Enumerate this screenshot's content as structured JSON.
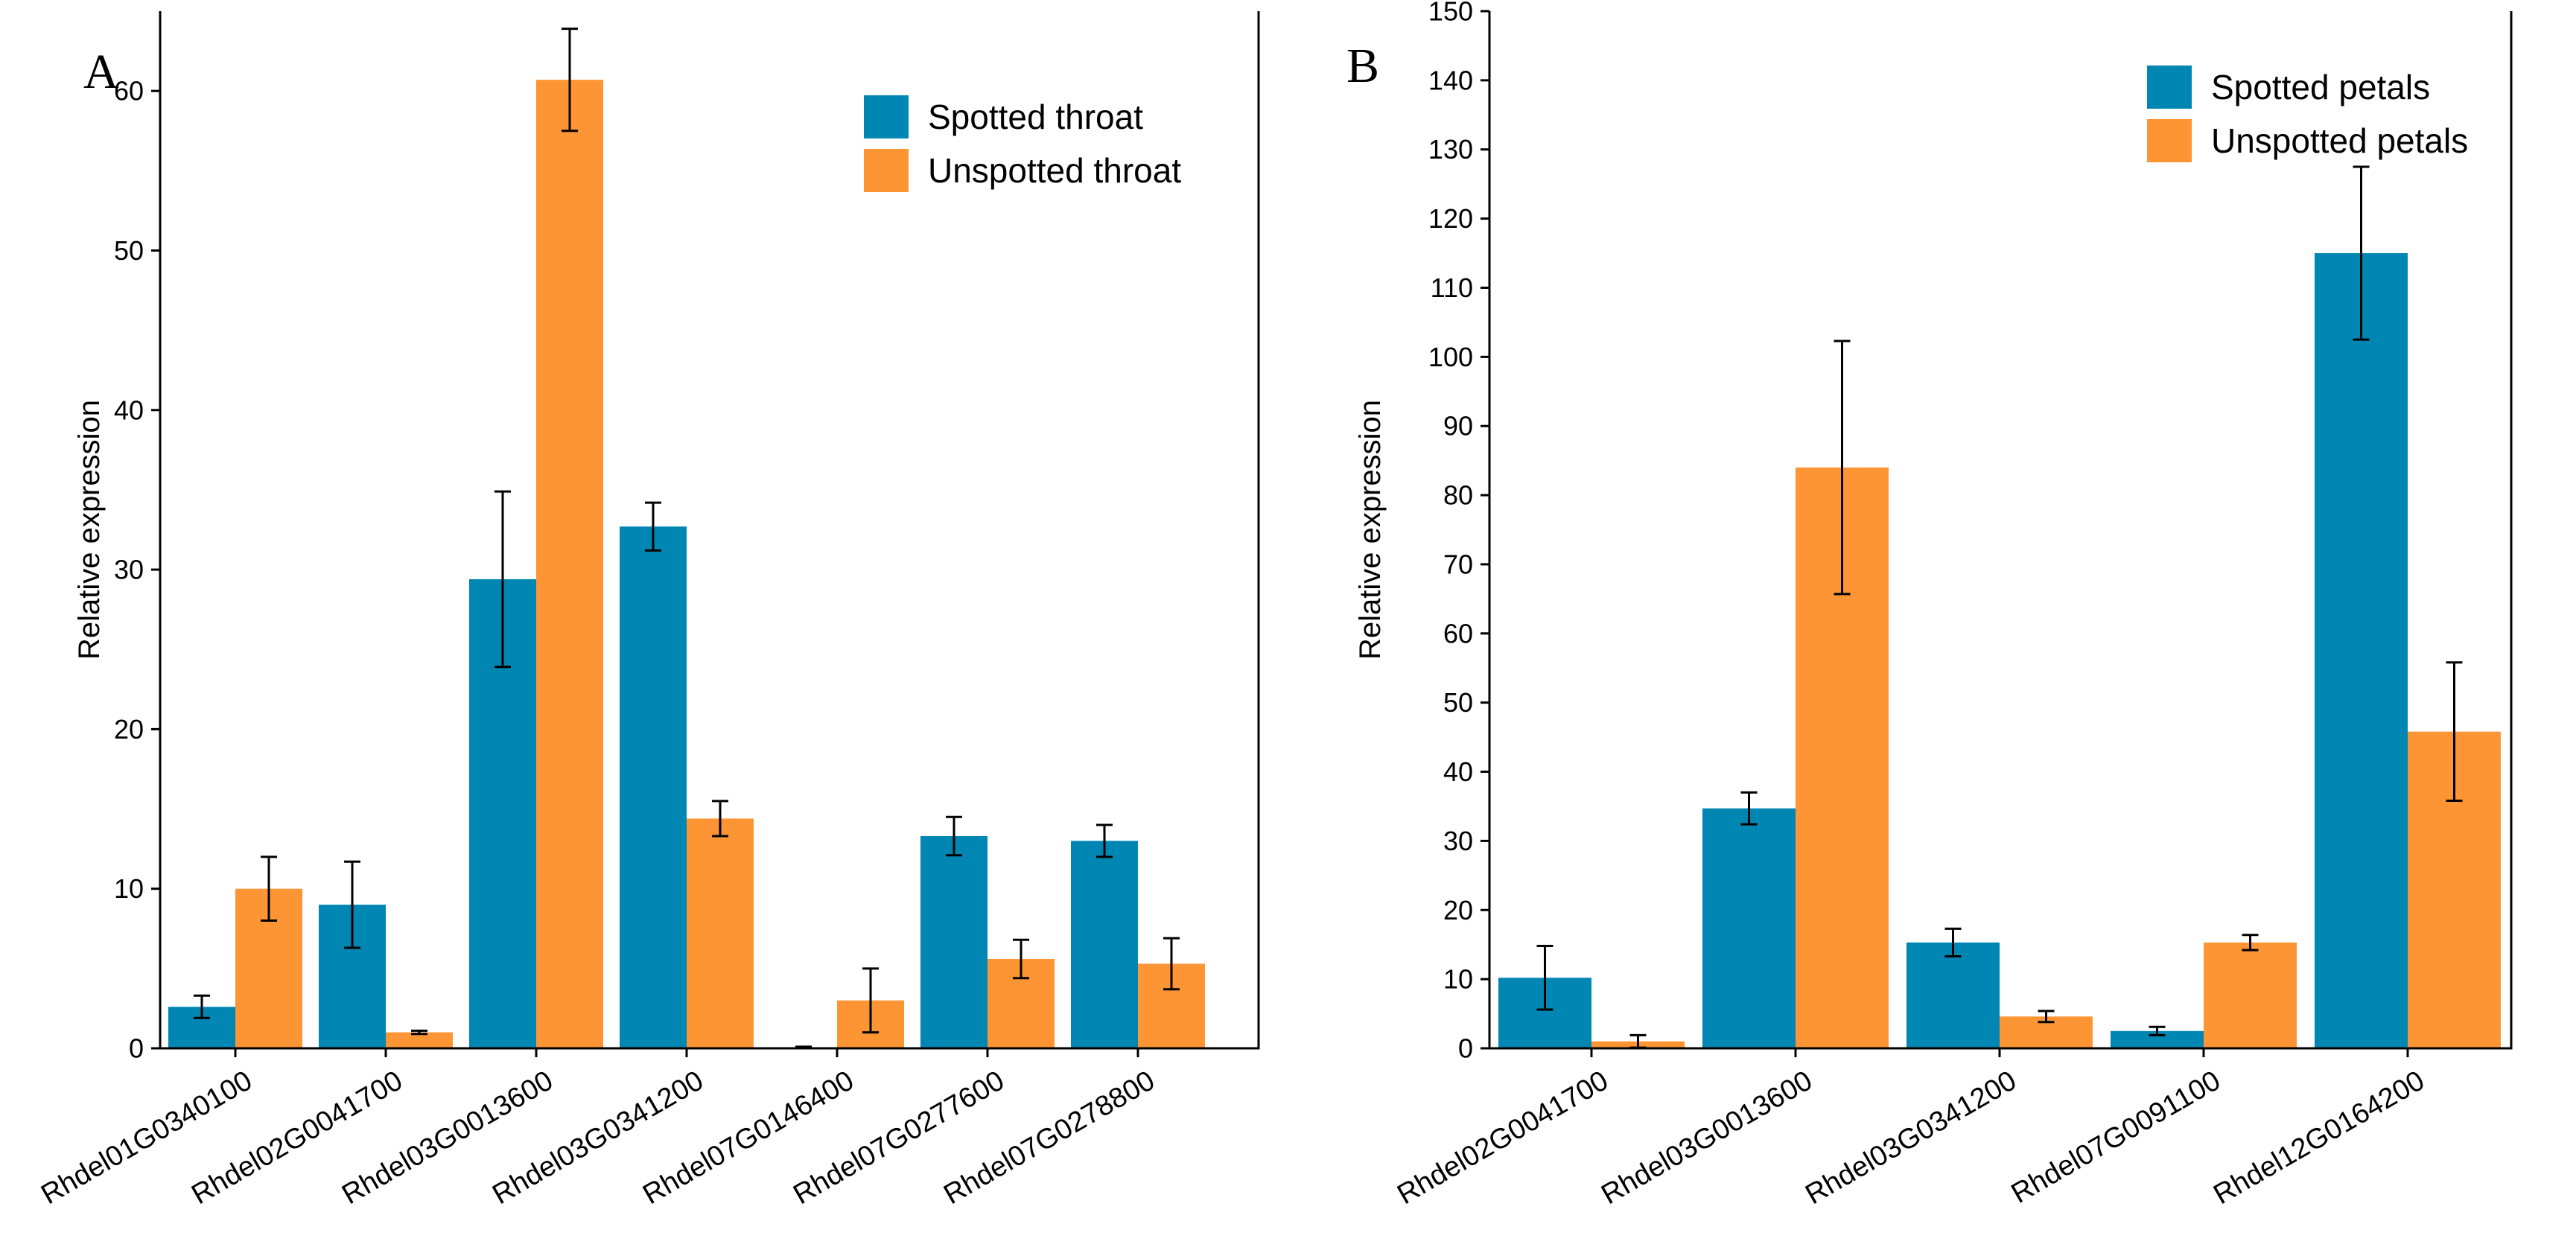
{
  "colors": {
    "spotted": "#0086b3",
    "unspotted": "#fd9534",
    "axis": "#000000",
    "errorbar": "#000000"
  },
  "chart_data": [
    {
      "type": "bar",
      "panel_label": "A",
      "title": "",
      "xlabel": "",
      "ylabel": "Relative expression",
      "ylim": [
        0,
        65
      ],
      "yticks": [
        0,
        10,
        20,
        30,
        40,
        50,
        60
      ],
      "ytick_labels": [
        "0",
        "10",
        "20",
        "30",
        "40",
        "50",
        "60"
      ],
      "categories": [
        "Rhdel01G0340100",
        "Rhdel02G0041700",
        "Rhdel03G0013600",
        "Rhdel03G0341200",
        "Rhdel07G0146400",
        "Rhdel07G0277600",
        "Rhdel07G0278800"
      ],
      "series": [
        {
          "name": "Spotted throat",
          "color_key": "spotted",
          "values": [
            2.6,
            9.0,
            29.4,
            32.7,
            0.05,
            13.3,
            13.0
          ],
          "errors": [
            0.7,
            2.7,
            5.5,
            1.5,
            0.05,
            1.2,
            1.0
          ]
        },
        {
          "name": "Unspotted throat",
          "color_key": "unspotted",
          "values": [
            10.0,
            1.0,
            60.7,
            14.4,
            3.0,
            5.6,
            5.3
          ],
          "errors": [
            2.0,
            0.1,
            3.2,
            1.1,
            2.0,
            1.2,
            1.6
          ]
        }
      ],
      "legend_position": "top-right",
      "grid": false
    },
    {
      "type": "bar",
      "panel_label": "B",
      "title": "",
      "xlabel": "",
      "ylabel": "Relative expression",
      "ylim": [
        0,
        150
      ],
      "yticks": [
        0,
        10,
        20,
        30,
        40,
        50,
        60,
        70,
        80,
        90,
        100,
        110,
        120,
        130,
        140,
        150
      ],
      "ytick_labels": [
        "0",
        "10",
        "20",
        "30",
        "40",
        "50",
        "60",
        "70",
        "80",
        "90",
        "100",
        "110",
        "120",
        "130",
        "140",
        "150"
      ],
      "categories": [
        "Rhdel02G0041700",
        "Rhdel03G0013600",
        "Rhdel03G0341200",
        "Rhdel07G0091100",
        "Rhdel12G0164200"
      ],
      "series": [
        {
          "name": "Spotted petals",
          "color_key": "spotted",
          "values": [
            10.2,
            34.7,
            15.3,
            2.5,
            115.0
          ],
          "errors": [
            4.6,
            2.3,
            2.0,
            0.6,
            12.5
          ]
        },
        {
          "name": "Unspotted petals",
          "color_key": "unspotted",
          "values": [
            1.0,
            84.0,
            4.6,
            15.3,
            45.8
          ],
          "errors": [
            0.9,
            18.3,
            0.8,
            1.1,
            10.0
          ]
        }
      ],
      "legend_position": "top-right",
      "grid": false
    }
  ]
}
